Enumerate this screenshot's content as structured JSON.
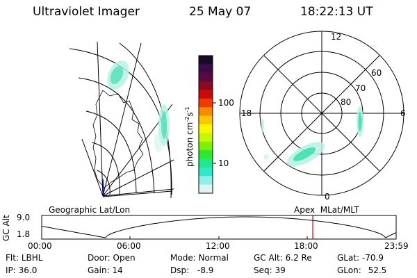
{
  "header": {
    "instrument": "Ultraviolet Imager",
    "date": "25 May 07",
    "time": "18:22:13 UT"
  },
  "geo_panel": {
    "label": "Geographic Lat/Lon"
  },
  "colorbar": {
    "label": "photon cm",
    "exp1": "-2",
    "s": "s",
    "exp2": "-1",
    "ticks": [
      "100",
      "10"
    ],
    "colors": [
      "#1a0a2a",
      "#3a0a4a",
      "#5a0a40",
      "#8a0a20",
      "#c80a0a",
      "#f03a00",
      "#f88a00",
      "#f8c800",
      "#f8f800",
      "#c8f800",
      "#80f000",
      "#30e830",
      "#20e890",
      "#30e8c8",
      "#90f0e8",
      "#e0f4f4"
    ]
  },
  "polar_panel": {
    "label": "Apex  MLat/MLT",
    "mlt_labels": [
      "12",
      "18",
      "6",
      "0"
    ],
    "lat_labels": [
      "60",
      "70",
      "80"
    ]
  },
  "timeline": {
    "axis_label": "GC Alt",
    "ymax": "9.0",
    "ymin": "1.8",
    "ticks": [
      "00:00",
      "06:00",
      "12:00",
      "18:00",
      "23:59"
    ],
    "marker_color": "#e00000"
  },
  "info": {
    "flt_label": "Flt:",
    "flt": "LBHL",
    "door_label": "Door:",
    "door": "Open",
    "mode_label": "Mode:",
    "mode": "Normal",
    "gcalt_label": "GC Alt:",
    "gcalt": "6.2 Re",
    "glat_label": "GLat:",
    "glat": "-70.9",
    "ip_label": "IP:",
    "ip": "36.0",
    "gain_label": "Gain:",
    "gain": "14",
    "dsp_label": "Dsp:",
    "dsp": "-8.9",
    "seq_label": "Seq:",
    "seq": "39",
    "glon_label": "GLon:",
    "glon": "52.5"
  }
}
